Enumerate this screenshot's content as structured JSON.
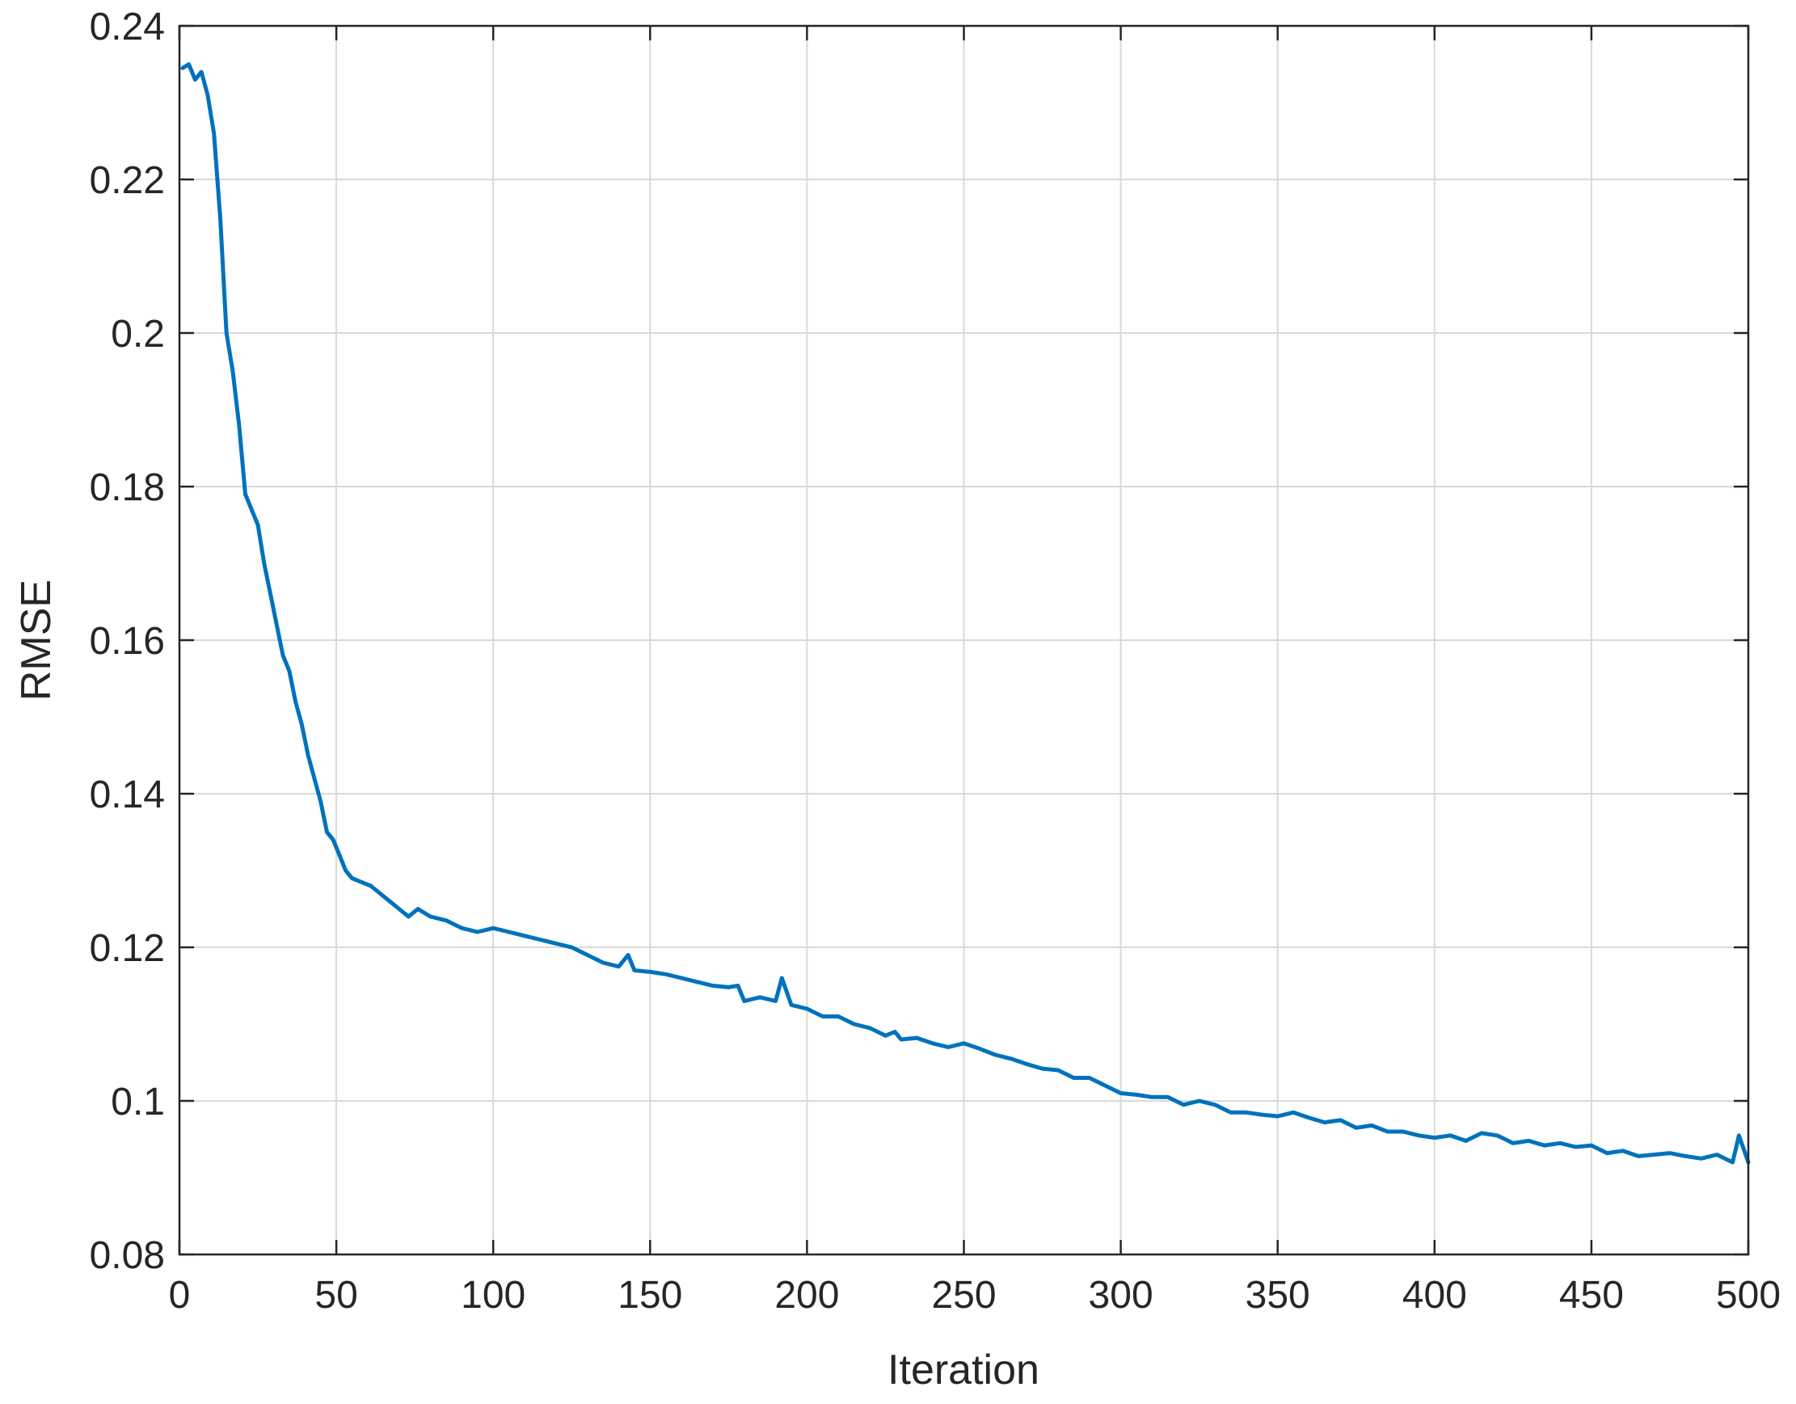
{
  "chart_data": {
    "type": "line",
    "title": "",
    "xlabel": "Iteration",
    "ylabel": "RMSE",
    "xlim": [
      0,
      500
    ],
    "ylim": [
      0.08,
      0.24
    ],
    "grid": true,
    "legend": "none",
    "xticks": [
      0,
      50,
      100,
      150,
      200,
      250,
      300,
      350,
      400,
      450,
      500
    ],
    "yticks": [
      0.08,
      0.1,
      0.12,
      0.14,
      0.16,
      0.18,
      0.2,
      0.22,
      0.24
    ],
    "xtick_labels": [
      "0",
      "50",
      "100",
      "150",
      "200",
      "250",
      "300",
      "350",
      "400",
      "450",
      "500"
    ],
    "ytick_labels": [
      "0.08",
      "0.1",
      "0.12",
      "0.14",
      "0.16",
      "0.18",
      "0.2",
      "0.22",
      "0.24"
    ],
    "series": [
      {
        "color": "#0072BD",
        "x": [
          1,
          3,
          5,
          7,
          9,
          11,
          13,
          15,
          17,
          19,
          21,
          23,
          25,
          27,
          29,
          31,
          33,
          35,
          37,
          39,
          41,
          43,
          45,
          47,
          49,
          51,
          53,
          55,
          58,
          61,
          64,
          67,
          70,
          73,
          76,
          80,
          85,
          90,
          95,
          100,
          105,
          110,
          115,
          120,
          125,
          130,
          135,
          140,
          143,
          145,
          150,
          155,
          160,
          165,
          170,
          175,
          178,
          180,
          185,
          190,
          192,
          195,
          200,
          205,
          210,
          215,
          220,
          225,
          228,
          230,
          235,
          240,
          245,
          250,
          255,
          260,
          265,
          270,
          275,
          280,
          285,
          290,
          295,
          300,
          305,
          310,
          315,
          320,
          325,
          330,
          335,
          340,
          345,
          350,
          355,
          360,
          365,
          370,
          375,
          380,
          385,
          390,
          395,
          400,
          405,
          410,
          415,
          420,
          425,
          430,
          435,
          440,
          445,
          450,
          455,
          460,
          465,
          470,
          475,
          480,
          485,
          490,
          495,
          497,
          500
        ],
        "y": [
          0.2345,
          0.235,
          0.233,
          0.234,
          0.231,
          0.226,
          0.215,
          0.2,
          0.195,
          0.188,
          0.179,
          0.177,
          0.175,
          0.17,
          0.166,
          0.162,
          0.158,
          0.156,
          0.152,
          0.149,
          0.145,
          0.142,
          0.139,
          0.135,
          0.134,
          0.132,
          0.13,
          0.129,
          0.1285,
          0.128,
          0.127,
          0.126,
          0.125,
          0.124,
          0.125,
          0.124,
          0.1235,
          0.1225,
          0.122,
          0.1225,
          0.122,
          0.1215,
          0.121,
          0.1205,
          0.12,
          0.119,
          0.118,
          0.1175,
          0.119,
          0.117,
          0.1168,
          0.1165,
          0.116,
          0.1155,
          0.115,
          0.1148,
          0.115,
          0.113,
          0.1135,
          0.113,
          0.116,
          0.1125,
          0.112,
          0.111,
          0.111,
          0.11,
          0.1095,
          0.1085,
          0.109,
          0.108,
          0.1082,
          0.1075,
          0.107,
          0.1075,
          0.1068,
          0.106,
          0.1055,
          0.1048,
          0.1042,
          0.104,
          0.103,
          0.103,
          0.102,
          0.101,
          0.1008,
          0.1005,
          0.1005,
          0.0995,
          0.1,
          0.0995,
          0.0985,
          0.0985,
          0.0982,
          0.098,
          0.0985,
          0.0978,
          0.0972,
          0.0975,
          0.0965,
          0.0968,
          0.096,
          0.096,
          0.0955,
          0.0952,
          0.0955,
          0.0948,
          0.0958,
          0.0955,
          0.0945,
          0.0948,
          0.0942,
          0.0945,
          0.094,
          0.0942,
          0.0932,
          0.0935,
          0.0928,
          0.093,
          0.0932,
          0.0928,
          0.0925,
          0.093,
          0.092,
          0.0955,
          0.092
        ]
      }
    ]
  }
}
